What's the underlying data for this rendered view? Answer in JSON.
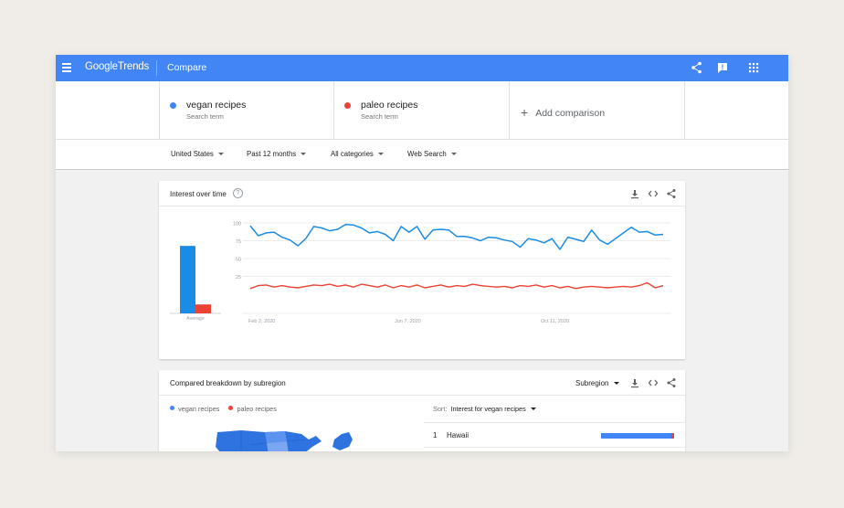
{
  "app": {
    "logo_google": "Google",
    "logo_trends": "Trends",
    "page": "Compare"
  },
  "icons": {
    "menu": "menu-icon",
    "share": "share-icon",
    "feedback": "feedback-icon",
    "apps": "apps-grid-icon",
    "download": "download-icon",
    "embed": "embed-code-icon",
    "help": "help-icon",
    "add": "plus-icon"
  },
  "colors": {
    "accent": "#4285f4",
    "series_1": "#4285f4",
    "series_1_line": "#1a8ce6",
    "series_2": "#ea4335"
  },
  "terms": [
    {
      "name": "vegan recipes",
      "sub": "Search term",
      "color": "#4285f4"
    },
    {
      "name": "paleo recipes",
      "sub": "Search term",
      "color": "#ea4335"
    }
  ],
  "add_comparison": "Add comparison",
  "filters": {
    "geo": "United States",
    "time": "Past 12 months",
    "category": "All categories",
    "property": "Web Search"
  },
  "interest_card": {
    "title": "Interest over time",
    "help": "?"
  },
  "chart_data": {
    "type": "line",
    "title": "Interest over time",
    "ylim": [
      0,
      100
    ],
    "yticks": [
      "100",
      "75",
      "50",
      "25"
    ],
    "xticks": [
      "Feb 2, 2020",
      "Jun 7, 2020",
      "Oct 11, 2020"
    ],
    "average": {
      "label": "Average",
      "values": [
        83,
        11
      ]
    },
    "grid": true,
    "series": [
      {
        "name": "vegan recipes",
        "color": "#1a8ce6",
        "values": [
          96,
          82,
          86,
          87,
          80,
          76,
          68,
          78,
          95,
          93,
          89,
          91,
          98,
          97,
          93,
          86,
          88,
          84,
          75,
          95,
          87,
          95,
          77,
          90,
          91,
          90,
          81,
          81,
          79,
          75,
          80,
          79,
          76,
          74,
          66,
          78,
          76,
          72,
          78,
          63,
          80,
          77,
          74,
          90,
          76,
          70,
          78,
          86,
          94,
          87,
          88,
          83,
          84
        ]
      },
      {
        "name": "paleo recipes",
        "color": "#ea4335",
        "values": [
          8,
          12,
          13,
          10,
          12,
          10,
          9,
          11,
          13,
          12,
          14,
          11,
          13,
          10,
          14,
          12,
          10,
          13,
          9,
          12,
          10,
          13,
          9,
          11,
          13,
          10,
          12,
          11,
          14,
          12,
          11,
          10,
          11,
          9,
          12,
          11,
          13,
          10,
          12,
          9,
          11,
          8,
          10,
          11,
          10,
          9,
          10,
          11,
          10,
          12,
          16,
          9,
          12
        ]
      }
    ]
  },
  "breakdown_card": {
    "title": "Compared breakdown by subregion",
    "select": "Subregion",
    "legend": [
      "vegan recipes",
      "paleo recipes"
    ],
    "sort_label": "Sort:",
    "sort_value": "Interest for vegan recipes",
    "rows": [
      {
        "rank": "1",
        "name": "Hawaii",
        "vegan": 0.96,
        "paleo": 0.04
      }
    ]
  }
}
